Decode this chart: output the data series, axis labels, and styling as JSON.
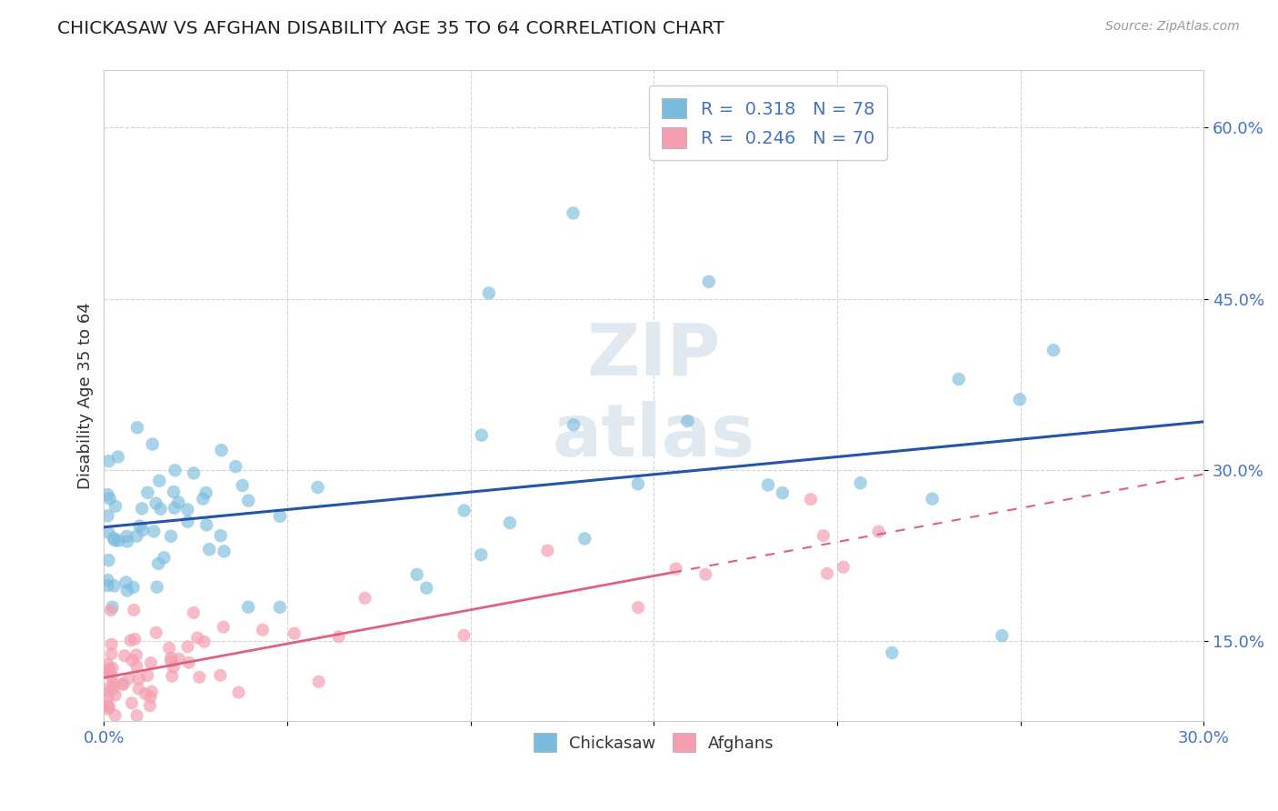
{
  "title": "CHICKASAW VS AFGHAN DISABILITY AGE 35 TO 64 CORRELATION CHART",
  "source": "Source: ZipAtlas.com",
  "ylabel": "Disability Age 35 to 64",
  "xlim": [
    0.0,
    0.3
  ],
  "ylim": [
    0.08,
    0.65
  ],
  "yticks": [
    0.15,
    0.3,
    0.45,
    0.6
  ],
  "yticklabels": [
    "15.0%",
    "30.0%",
    "45.0%",
    "60.0%"
  ],
  "xtick_show": [
    0.0,
    0.3
  ],
  "xticklabels_show": [
    "0.0%",
    "30.0%"
  ],
  "chickasaw_color": "#7bbcdc",
  "afghan_color": "#f4a0b0",
  "chickasaw_line_color": "#2255aa",
  "afghan_line_color": "#e06080",
  "chickasaw_R": 0.318,
  "chickasaw_N": 78,
  "afghan_R": 0.246,
  "afghan_N": 70,
  "legend_label_chickasaw": "Chickasaw",
  "legend_label_afghan": "Afghans",
  "background_color": "#ffffff",
  "grid_color": "#d0d0d0",
  "title_color": "#222222",
  "axis_label_color": "#333333",
  "tick_label_color": "#4472c4",
  "watermark_color": "#e0e8f0"
}
